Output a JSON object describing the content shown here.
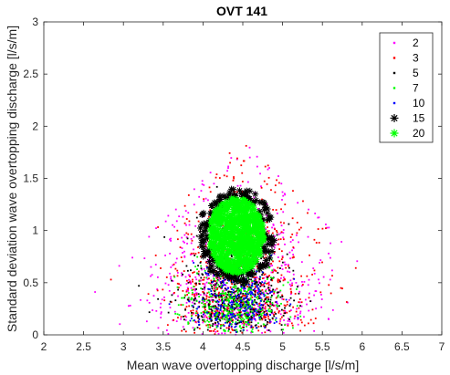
{
  "chart_data": {
    "type": "scatter",
    "title": "OVT 141",
    "xlabel": "Mean wave overtopping discharge [l/s/m]",
    "ylabel": "Standard deviation wave overtopping discharge [l/s/m]",
    "xlim": [
      2,
      7
    ],
    "ylim": [
      0,
      3
    ],
    "xticks": [
      "2",
      "2.5",
      "3",
      "3.5",
      "4",
      "4.5",
      "5",
      "5.5",
      "6",
      "6.5",
      "7"
    ],
    "yticks": [
      "0",
      "0.5",
      "1",
      "1.5",
      "2",
      "2.5",
      "3"
    ],
    "grid": false,
    "legend_position": "top-right",
    "series": [
      {
        "name": "2",
        "color": "#ff00ff",
        "marker": "dot",
        "center": [
          4.45,
          0.72
        ],
        "spread": [
          0.95,
          0.75
        ]
      },
      {
        "name": "3",
        "color": "#ff0000",
        "marker": "dot",
        "center": [
          4.45,
          0.72
        ],
        "spread": [
          0.78,
          0.62
        ]
      },
      {
        "name": "5",
        "color": "#000000",
        "marker": "dot",
        "center": [
          4.42,
          0.85
        ],
        "spread": [
          0.62,
          0.5
        ]
      },
      {
        "name": "7",
        "color": "#00ff00",
        "marker": "dot",
        "center": [
          4.42,
          0.9
        ],
        "spread": [
          0.52,
          0.45
        ]
      },
      {
        "name": "10",
        "color": "#0000ff",
        "marker": "dot",
        "center": [
          4.42,
          0.92
        ],
        "spread": [
          0.48,
          0.42
        ]
      },
      {
        "name": "15",
        "color": "#000000",
        "marker": "asterisk",
        "center": [
          4.42,
          0.95
        ],
        "spread": [
          0.42,
          0.4
        ]
      },
      {
        "name": "20",
        "color": "#00ff00",
        "marker": "asterisk",
        "center": [
          4.42,
          0.95
        ],
        "spread": [
          0.35,
          0.36
        ]
      }
    ]
  }
}
